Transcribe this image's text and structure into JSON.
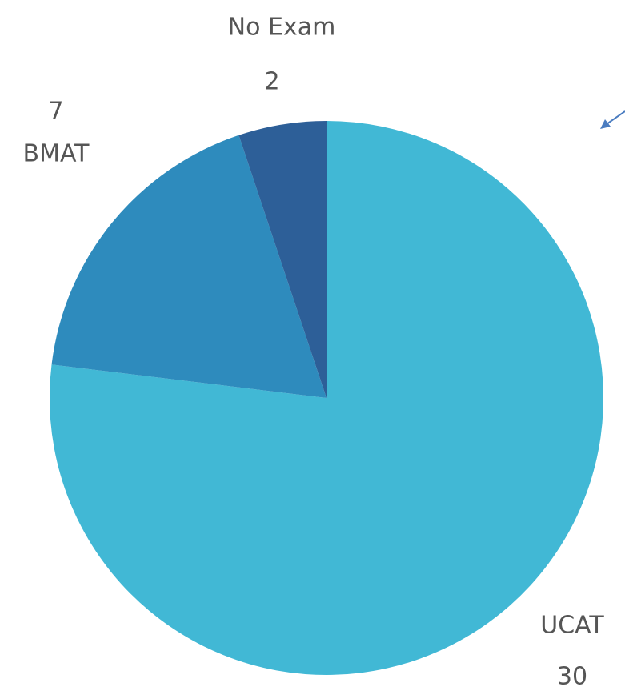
{
  "chart_data": {
    "type": "pie",
    "categories": [
      "UCAT",
      "BMAT",
      "No Exam"
    ],
    "values": [
      30,
      7,
      2
    ],
    "colors": [
      "#41b8d5",
      "#2e8bbd",
      "#2d5f98"
    ],
    "start_angle": 0,
    "direction": "clockwise"
  }
}
